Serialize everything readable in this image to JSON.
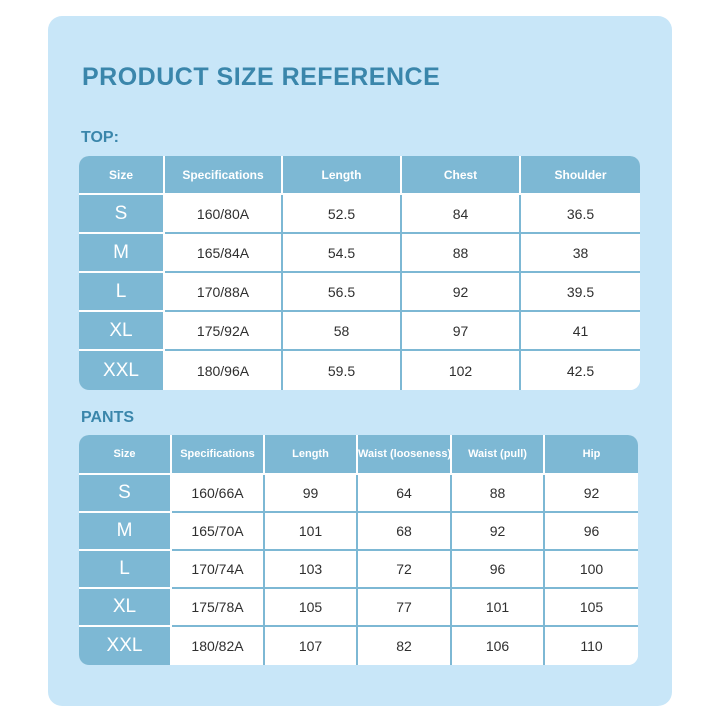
{
  "title": "PRODUCT SIZE REFERENCE",
  "colors": {
    "card_background": "#c8e6f8",
    "header_fill": "#7db8d4",
    "title_text": "#3a86ab",
    "cell_background": "#ffffff"
  },
  "top": {
    "label": "TOP:",
    "headers": [
      "Size",
      "Specifications",
      "Length",
      "Chest",
      "Shoulder"
    ],
    "rows": [
      [
        "S",
        "160/80A",
        "52.5",
        "84",
        "36.5"
      ],
      [
        "M",
        "165/84A",
        "54.5",
        "88",
        "38"
      ],
      [
        "L",
        "170/88A",
        "56.5",
        "92",
        "39.5"
      ],
      [
        "XL",
        "175/92A",
        "58",
        "97",
        "41"
      ],
      [
        "XXL",
        "180/96A",
        "59.5",
        "102",
        "42.5"
      ]
    ]
  },
  "pants": {
    "label": "PANTS",
    "headers": [
      "Size",
      "Specifications",
      "Length",
      "Waist (looseness)",
      "Waist (pull)",
      "Hip"
    ],
    "rows": [
      [
        "S",
        "160/66A",
        "99",
        "64",
        "88",
        "92"
      ],
      [
        "M",
        "165/70A",
        "101",
        "68",
        "92",
        "96"
      ],
      [
        "L",
        "170/74A",
        "103",
        "72",
        "96",
        "100"
      ],
      [
        "XL",
        "175/78A",
        "105",
        "77",
        "101",
        "105"
      ],
      [
        "XXL",
        "180/82A",
        "107",
        "82",
        "106",
        "110"
      ]
    ]
  }
}
